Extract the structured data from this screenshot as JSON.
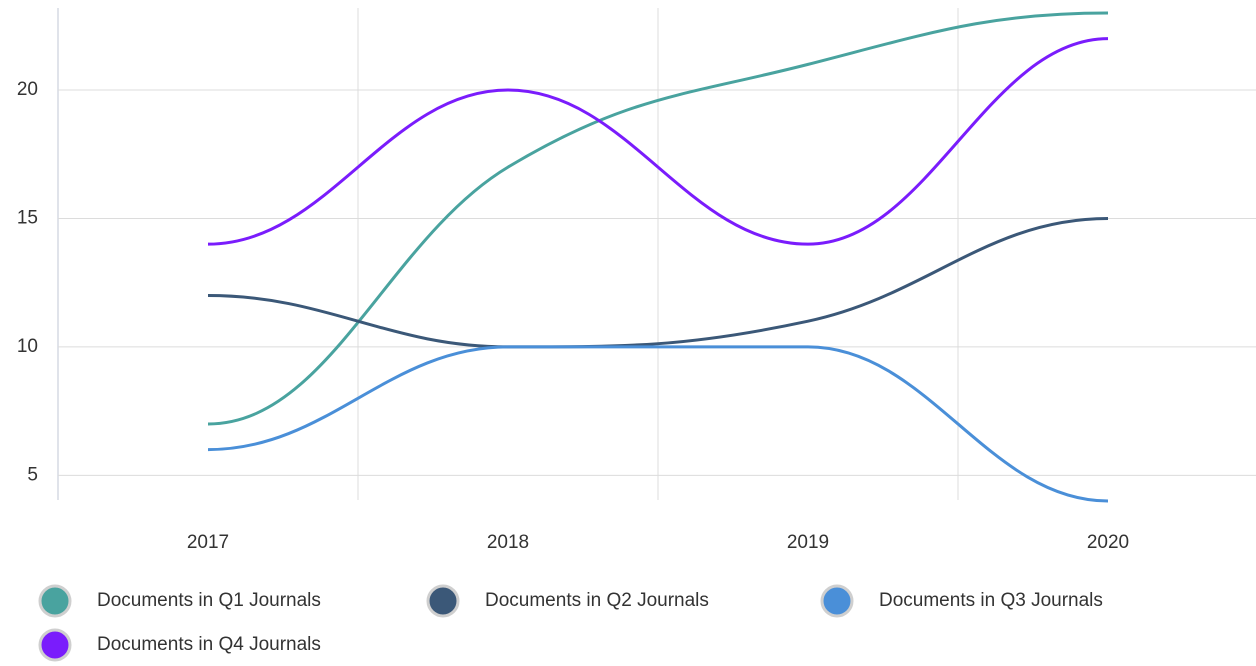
{
  "chart_data": {
    "type": "line",
    "categories": [
      "2017",
      "2018",
      "2019",
      "2020"
    ],
    "series": [
      {
        "name": "Documents in Q1 Journals",
        "color": "#49a39f",
        "values": [
          7,
          17,
          21,
          23
        ]
      },
      {
        "name": "Documents in Q2 Journals",
        "color": "#3b5878",
        "values": [
          12,
          10,
          11,
          15
        ]
      },
      {
        "name": "Documents in Q3 Journals",
        "color": "#4a8fd8",
        "values": [
          6,
          10,
          10,
          4
        ]
      },
      {
        "name": "Documents in Q4 Journals",
        "color": "#7a1cfc",
        "values": [
          14,
          20,
          14,
          22
        ]
      }
    ],
    "ylim": [
      4,
      23
    ],
    "yticks": [
      5,
      10,
      15,
      20
    ],
    "grid": true,
    "legend": "bottom"
  }
}
